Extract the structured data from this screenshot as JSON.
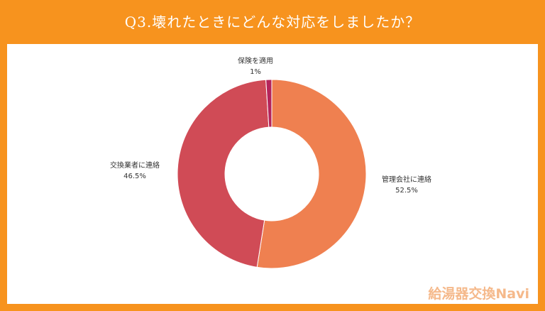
{
  "header": {
    "title": "Q3.壊れたときにどんな対応をしましたか？"
  },
  "chart_data": {
    "type": "pie",
    "donut": true,
    "title": "Q3.壊れたときにどんな対応をしましたか？",
    "slices": [
      {
        "label": "管理会社に連絡",
        "value": 52.5,
        "value_label": "52.5%",
        "color": "#ef8050"
      },
      {
        "label": "交換業者に連絡",
        "value": 46.5,
        "value_label": "46.5%",
        "color": "#d04b56"
      },
      {
        "label": "保険を適用",
        "value": 1,
        "value_label": "1%",
        "color": "#b5245a"
      }
    ]
  },
  "branding": {
    "watermark": "給湯器交換Navi"
  }
}
